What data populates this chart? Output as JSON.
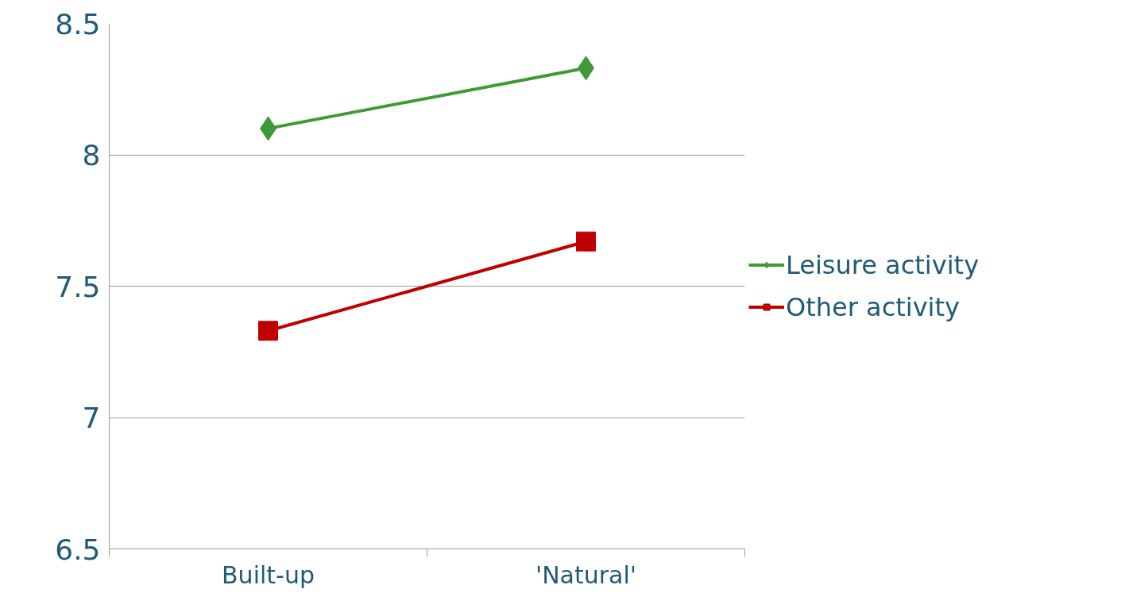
{
  "chart_data": {
    "type": "line",
    "categories": [
      "Built-up",
      "'Natural'"
    ],
    "series": [
      {
        "name": "Leisure activity",
        "color": "#3f9a35",
        "values": [
          8.1,
          8.33
        ],
        "marker": "diamond"
      },
      {
        "name": "Other activity",
        "color": "#c00000",
        "values": [
          7.33,
          7.67
        ],
        "marker": "square"
      }
    ],
    "ylim": [
      6.5,
      8.5
    ],
    "yticks": [
      6.5,
      7,
      7.5,
      8,
      8.5
    ],
    "grid": "y",
    "legend": "right"
  }
}
